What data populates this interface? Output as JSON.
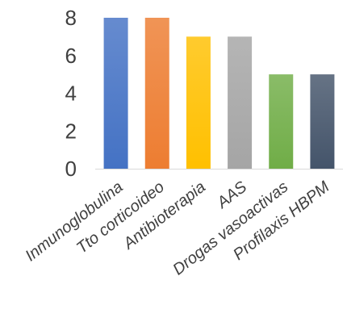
{
  "chart_data": {
    "type": "bar",
    "categories": [
      "Inmunoglobulina",
      "Tto corticoideo",
      "Antibioterapia",
      "AAS",
      "Drogas vasoactivas",
      "Profilaxis HBPM"
    ],
    "values": [
      8,
      8,
      7,
      7,
      5,
      5
    ],
    "yticks": [
      0,
      2,
      4,
      6,
      8
    ],
    "ylim": [
      0,
      8
    ],
    "colors": [
      "#4472C4",
      "#ED7D31",
      "#FFC000",
      "#A5A5A5",
      "#70AD47",
      "#44546A"
    ],
    "grid": false,
    "legend": "none"
  }
}
